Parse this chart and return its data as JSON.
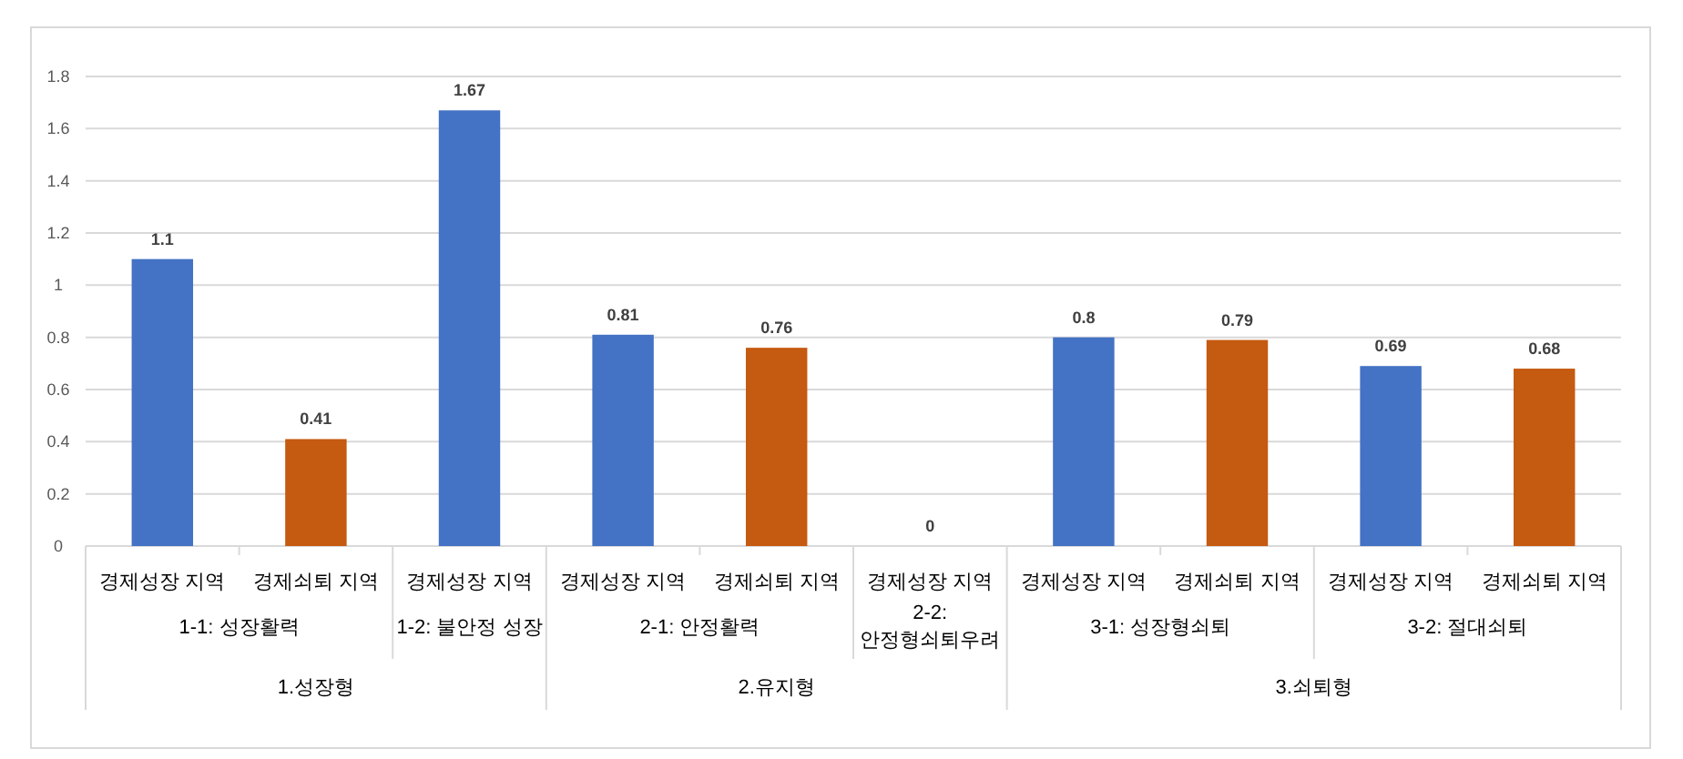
{
  "chart_data": {
    "type": "bar",
    "categories": [
      "경제성장 지역",
      "경제쇠퇴 지역",
      "경제성장 지역",
      "경제성장 지역",
      "경제쇠퇴 지역",
      "경제성장 지역",
      "경제성장 지역",
      "경제쇠퇴 지역",
      "경제성장 지역",
      "경제쇠퇴 지역"
    ],
    "values": [
      1.1,
      0.41,
      1.67,
      0.81,
      0.76,
      0,
      0.8,
      0.79,
      0.69,
      0.68
    ],
    "colors": [
      "#4472c4",
      "#c55a11",
      "#4472c4",
      "#4472c4",
      "#c55a11",
      "#4472c4",
      "#4472c4",
      "#c55a11",
      "#4472c4",
      "#c55a11"
    ],
    "ylim": [
      0,
      1.8
    ],
    "yticks": [
      0,
      0.2,
      0.4,
      0.6,
      0.8,
      1,
      1.2,
      1.4,
      1.6,
      1.8
    ],
    "grid": "y",
    "data_labels": true,
    "annotations": [
      "1-1: 성장활력",
      "1-2: 불안정 성장",
      "2-1: 안정활력",
      "2-2:\n안정형쇠퇴우려",
      "3-1: 성장형쇠퇴",
      "3-2: 절대쇠퇴",
      "1.성장형",
      "2.유지형",
      "3.쇠퇴형"
    ]
  }
}
